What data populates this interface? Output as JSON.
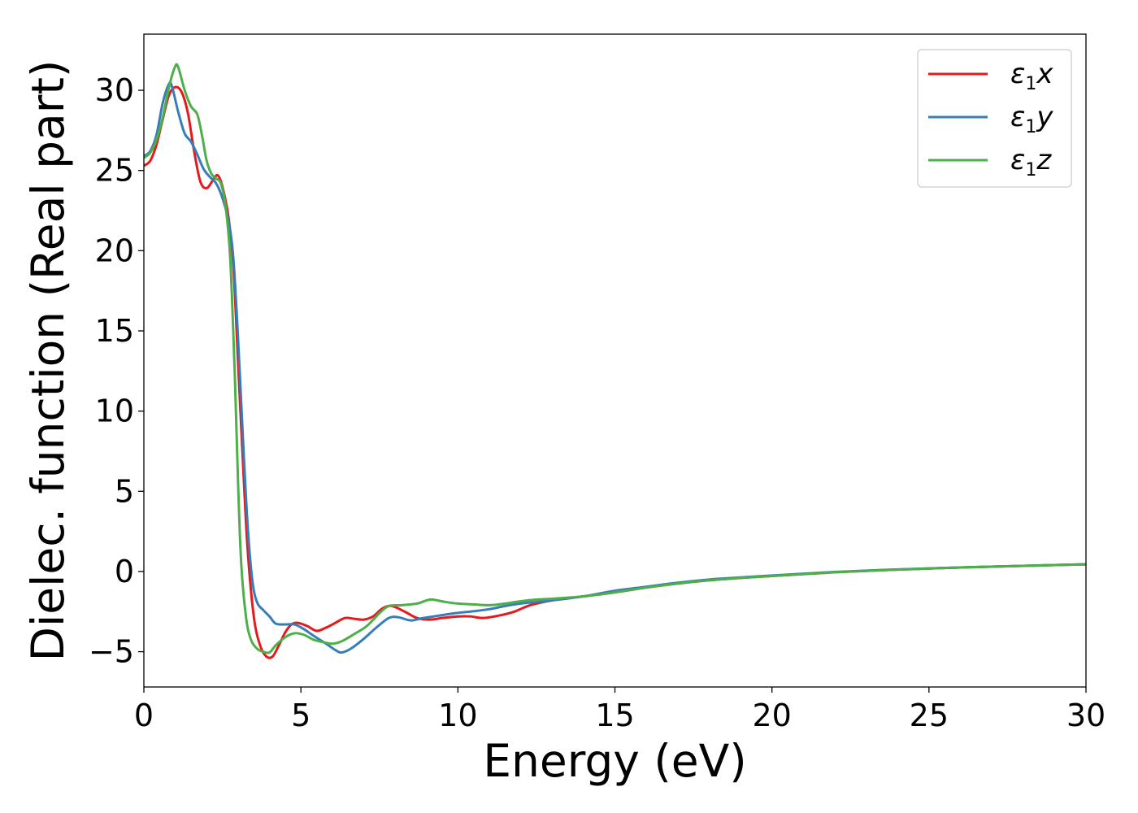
{
  "chart_data": {
    "type": "line",
    "xlabel": "Energy (eV)",
    "ylabel": "Dielec. function (Real part)",
    "xlim": [
      0,
      30
    ],
    "ylim": [
      -7.2,
      33.5
    ],
    "xticks": [
      0,
      5,
      10,
      15,
      20,
      25,
      30
    ],
    "yticks": [
      -5,
      0,
      5,
      10,
      15,
      20,
      25,
      30
    ],
    "grid": false,
    "legend_position": "top-right",
    "series": [
      {
        "name": "ε1x",
        "legend_symbol": "ε",
        "legend_sub": "1",
        "legend_var": "x",
        "color": "#e41a1c",
        "points": [
          [
            0,
            25.3
          ],
          [
            0.2,
            25.6
          ],
          [
            0.4,
            26.6
          ],
          [
            0.6,
            28.2
          ],
          [
            0.8,
            29.7
          ],
          [
            1.0,
            30.2
          ],
          [
            1.2,
            29.9
          ],
          [
            1.4,
            28.6
          ],
          [
            1.6,
            26.2
          ],
          [
            1.8,
            24.3
          ],
          [
            2.0,
            23.9
          ],
          [
            2.2,
            24.4
          ],
          [
            2.35,
            24.7
          ],
          [
            2.5,
            24.0
          ],
          [
            2.7,
            22.0
          ],
          [
            2.85,
            19.0
          ],
          [
            3.0,
            13.0
          ],
          [
            3.15,
            7.0
          ],
          [
            3.3,
            1.5
          ],
          [
            3.5,
            -2.8
          ],
          [
            3.7,
            -4.6
          ],
          [
            3.9,
            -5.3
          ],
          [
            4.1,
            -5.3
          ],
          [
            4.3,
            -4.6
          ],
          [
            4.5,
            -3.8
          ],
          [
            4.7,
            -3.3
          ],
          [
            4.9,
            -3.2
          ],
          [
            5.2,
            -3.4
          ],
          [
            5.5,
            -3.7
          ],
          [
            5.8,
            -3.5
          ],
          [
            6.1,
            -3.2
          ],
          [
            6.4,
            -2.9
          ],
          [
            6.7,
            -2.95
          ],
          [
            7.0,
            -3.0
          ],
          [
            7.3,
            -2.8
          ],
          [
            7.6,
            -2.3
          ],
          [
            7.9,
            -2.15
          ],
          [
            8.3,
            -2.5
          ],
          [
            8.7,
            -2.9
          ],
          [
            9.1,
            -3.0
          ],
          [
            9.5,
            -2.9
          ],
          [
            10.0,
            -2.8
          ],
          [
            10.4,
            -2.8
          ],
          [
            10.8,
            -2.9
          ],
          [
            11.3,
            -2.75
          ],
          [
            11.8,
            -2.5
          ],
          [
            12.3,
            -2.1
          ],
          [
            13.0,
            -1.8
          ],
          [
            13.8,
            -1.6
          ],
          [
            15,
            -1.3
          ],
          [
            16,
            -1.0
          ],
          [
            17,
            -0.75
          ],
          [
            18,
            -0.55
          ],
          [
            19,
            -0.4
          ],
          [
            20,
            -0.28
          ],
          [
            22,
            -0.05
          ],
          [
            24,
            0.12
          ],
          [
            26,
            0.25
          ],
          [
            28,
            0.35
          ],
          [
            30,
            0.45
          ]
        ]
      },
      {
        "name": "ε1y",
        "legend_symbol": "ε",
        "legend_sub": "1",
        "legend_var": "y",
        "color": "#377eb8",
        "points": [
          [
            0,
            25.9
          ],
          [
            0.2,
            26.2
          ],
          [
            0.4,
            27.2
          ],
          [
            0.6,
            29.2
          ],
          [
            0.8,
            30.4
          ],
          [
            0.9,
            30.2
          ],
          [
            1.1,
            28.6
          ],
          [
            1.3,
            27.3
          ],
          [
            1.5,
            26.8
          ],
          [
            1.7,
            26.0
          ],
          [
            1.9,
            25.1
          ],
          [
            2.1,
            24.6
          ],
          [
            2.3,
            24.2
          ],
          [
            2.5,
            23.3
          ],
          [
            2.7,
            21.8
          ],
          [
            2.85,
            19.5
          ],
          [
            3.0,
            14.5
          ],
          [
            3.15,
            8.5
          ],
          [
            3.3,
            3.0
          ],
          [
            3.45,
            -0.5
          ],
          [
            3.6,
            -1.9
          ],
          [
            3.8,
            -2.4
          ],
          [
            4.0,
            -2.8
          ],
          [
            4.2,
            -3.25
          ],
          [
            4.5,
            -3.3
          ],
          [
            4.8,
            -3.3
          ],
          [
            5.1,
            -3.6
          ],
          [
            5.4,
            -4.0
          ],
          [
            5.8,
            -4.5
          ],
          [
            6.1,
            -4.9
          ],
          [
            6.3,
            -5.05
          ],
          [
            6.6,
            -4.8
          ],
          [
            7.0,
            -4.2
          ],
          [
            7.4,
            -3.5
          ],
          [
            7.8,
            -2.9
          ],
          [
            8.1,
            -2.85
          ],
          [
            8.5,
            -3.05
          ],
          [
            8.9,
            -2.9
          ],
          [
            9.4,
            -2.75
          ],
          [
            9.9,
            -2.6
          ],
          [
            10.4,
            -2.5
          ],
          [
            11.0,
            -2.35
          ],
          [
            11.5,
            -2.15
          ],
          [
            12.0,
            -2.0
          ],
          [
            12.5,
            -1.9
          ],
          [
            13.0,
            -1.8
          ],
          [
            14,
            -1.55
          ],
          [
            15,
            -1.2
          ],
          [
            16,
            -0.95
          ],
          [
            17,
            -0.7
          ],
          [
            18,
            -0.5
          ],
          [
            19,
            -0.37
          ],
          [
            20,
            -0.25
          ],
          [
            22,
            -0.03
          ],
          [
            24,
            0.13
          ],
          [
            26,
            0.25
          ],
          [
            28,
            0.35
          ],
          [
            30,
            0.45
          ]
        ]
      },
      {
        "name": "ε1z",
        "legend_symbol": "ε",
        "legend_sub": "1",
        "legend_var": "z",
        "color": "#4daf4a",
        "points": [
          [
            0,
            25.8
          ],
          [
            0.2,
            26.1
          ],
          [
            0.4,
            26.9
          ],
          [
            0.6,
            28.3
          ],
          [
            0.8,
            30.2
          ],
          [
            1.0,
            31.5
          ],
          [
            1.1,
            31.4
          ],
          [
            1.3,
            30.0
          ],
          [
            1.5,
            29.0
          ],
          [
            1.7,
            28.5
          ],
          [
            1.85,
            27.2
          ],
          [
            2.0,
            25.6
          ],
          [
            2.15,
            24.8
          ],
          [
            2.3,
            24.5
          ],
          [
            2.45,
            24.2
          ],
          [
            2.6,
            22.8
          ],
          [
            2.75,
            19.5
          ],
          [
            2.9,
            12.0
          ],
          [
            3.0,
            5.5
          ],
          [
            3.1,
            0.5
          ],
          [
            3.25,
            -2.8
          ],
          [
            3.4,
            -4.2
          ],
          [
            3.6,
            -4.8
          ],
          [
            3.8,
            -5.0
          ],
          [
            4.0,
            -5.05
          ],
          [
            4.2,
            -4.6
          ],
          [
            4.5,
            -4.1
          ],
          [
            4.8,
            -3.85
          ],
          [
            5.1,
            -3.95
          ],
          [
            5.4,
            -4.25
          ],
          [
            5.7,
            -4.4
          ],
          [
            6.0,
            -4.5
          ],
          [
            6.3,
            -4.35
          ],
          [
            6.7,
            -3.9
          ],
          [
            7.1,
            -3.4
          ],
          [
            7.5,
            -2.6
          ],
          [
            7.8,
            -2.15
          ],
          [
            8.2,
            -2.1
          ],
          [
            8.7,
            -2.0
          ],
          [
            9.0,
            -1.8
          ],
          [
            9.2,
            -1.75
          ],
          [
            9.6,
            -1.9
          ],
          [
            10.0,
            -2.0
          ],
          [
            10.5,
            -2.05
          ],
          [
            11.0,
            -2.1
          ],
          [
            11.5,
            -2.0
          ],
          [
            12.0,
            -1.85
          ],
          [
            12.5,
            -1.75
          ],
          [
            13.0,
            -1.7
          ],
          [
            14,
            -1.55
          ],
          [
            15,
            -1.3
          ],
          [
            16,
            -1.0
          ],
          [
            17,
            -0.75
          ],
          [
            18,
            -0.55
          ],
          [
            19,
            -0.4
          ],
          [
            20,
            -0.28
          ],
          [
            22,
            -0.05
          ],
          [
            24,
            0.12
          ],
          [
            26,
            0.25
          ],
          [
            28,
            0.35
          ],
          [
            30,
            0.45
          ]
        ]
      }
    ]
  }
}
